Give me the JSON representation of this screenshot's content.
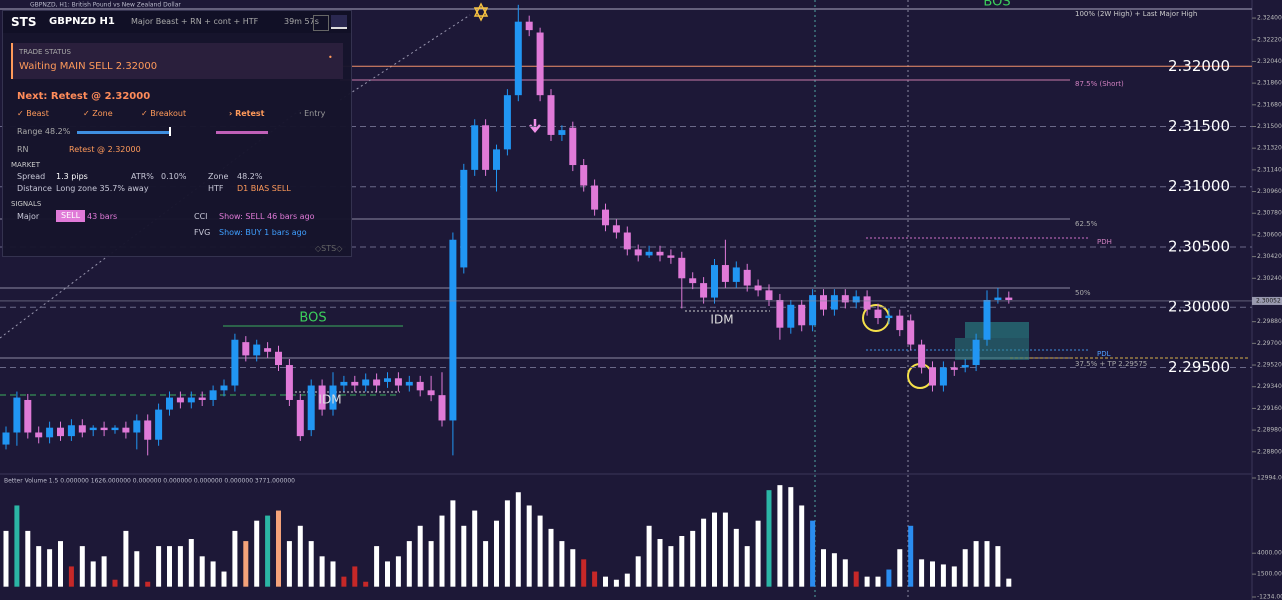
{
  "window_title": "GBPNZD, H1: British Pound vs New Zealand Dollar",
  "panel": {
    "logo": "STS",
    "symbol": "GBPNZD H1",
    "mode": "Major Beast + RN + cont + HTF",
    "timer": "39m 57s",
    "status_heading": "TRADE STATUS",
    "status": "Waiting MAIN SELL 2.32000",
    "next": "Next: Retest @ 2.32000",
    "steps": [
      "✓ Beast",
      "✓ Zone",
      "✓ Breakout",
      "› Retest",
      "· Entry"
    ],
    "range": "Range 48.2%",
    "rn_label": "RN",
    "rn_value": "Retest @ 2.32000",
    "market_heading": "MARKET",
    "spread_label": "Spread",
    "spread": "1.3 pips",
    "atr_label": "ATR%",
    "atr": "0.10%",
    "zone_label": "Zone",
    "zone": "48.2%",
    "distance_label": "Distance",
    "distance": "Long zone 35.7% away",
    "htf_label": "HTF",
    "htf": "D1 BIAS SELL",
    "signals_heading": "SIGNALS",
    "major_label": "Major",
    "major_badge": "SELL",
    "major_bars": "43 bars",
    "cci_label": "CCI",
    "cci": "Show: SELL 46 bars ago",
    "fvg_label": "FVG",
    "fvg": "Show: BUY 1 bars ago",
    "footer": "◇STS◇"
  },
  "chart_data": [
    {
      "type": "candlestick",
      "up_color": "#2196f3",
      "down_color": "#e07ad8",
      "open": [
        2.2886,
        2.2896,
        2.2923,
        2.2896,
        2.2892,
        2.29,
        2.2893,
        2.2902,
        2.2898,
        2.29,
        2.2898,
        2.29,
        2.2896,
        2.2906,
        2.289,
        2.2915,
        2.2925,
        2.2921,
        2.2925,
        2.2923,
        2.2931,
        2.2935,
        2.2971,
        2.296,
        2.2966,
        2.2963,
        2.2952,
        2.2923,
        2.2898,
        2.2935,
        2.2915,
        2.2935,
        2.2938,
        2.2935,
        2.294,
        2.2938,
        2.2941,
        2.2935,
        2.2938,
        2.2931,
        2.2927,
        2.2906,
        2.3033,
        2.3114,
        2.3151,
        2.3114,
        2.3131,
        2.3176,
        2.3237,
        2.3228,
        2.3176,
        2.3143,
        2.3149,
        2.3118,
        2.3101,
        2.3081,
        2.3068,
        2.3062,
        2.3048,
        2.3043,
        2.3046,
        2.3043,
        2.3041,
        2.3024,
        2.302,
        2.3008,
        2.3035,
        2.3021,
        2.3031,
        2.3018,
        2.3014,
        2.3006,
        2.2983,
        2.3002,
        2.2985,
        2.301,
        2.2998,
        2.301,
        2.3004,
        2.3009,
        2.2998,
        2.2991,
        2.2993,
        2.2989,
        2.2969,
        2.295,
        2.2935,
        2.295,
        2.295,
        2.2952,
        2.2973,
        2.3006,
        2.3008
      ],
      "high": [
        2.2901,
        2.293,
        2.2928,
        2.2901,
        2.2905,
        2.2905,
        2.2907,
        2.2907,
        2.2902,
        2.2905,
        2.2902,
        2.2905,
        2.2911,
        2.2911,
        2.292,
        2.293,
        2.293,
        2.293,
        2.293,
        2.2935,
        2.294,
        2.2978,
        2.2976,
        2.2973,
        2.2971,
        2.2968,
        2.2957,
        2.2928,
        2.294,
        2.294,
        2.2946,
        2.2943,
        2.2943,
        2.2945,
        2.2945,
        2.2946,
        2.2946,
        2.2943,
        2.2943,
        2.2943,
        2.2946,
        2.3062,
        2.3119,
        2.3156,
        2.3156,
        2.3135,
        2.3181,
        2.3251,
        2.3242,
        2.3232,
        2.3181,
        2.3151,
        2.3154,
        2.3123,
        2.3106,
        2.3086,
        2.3073,
        2.3067,
        2.3052,
        2.3051,
        2.3051,
        2.3048,
        2.3046,
        2.3029,
        2.3025,
        2.304,
        2.3056,
        2.3038,
        2.3036,
        2.3023,
        2.3019,
        2.3011,
        2.3006,
        2.3006,
        2.3015,
        2.3015,
        2.3015,
        2.3015,
        2.3014,
        2.3014,
        2.3003,
        2.2999,
        2.2998,
        2.2994,
        2.2973,
        2.2955,
        2.2955,
        2.2955,
        2.2957,
        2.2978,
        2.3014,
        2.3016,
        2.3013
      ],
      "low": [
        2.2882,
        2.2885,
        2.2891,
        2.2887,
        2.2887,
        2.2889,
        2.2889,
        2.2892,
        2.2893,
        2.2893,
        2.2895,
        2.2891,
        2.2882,
        2.2877,
        2.2885,
        2.291,
        2.2916,
        2.2916,
        2.2918,
        2.2918,
        2.2926,
        2.293,
        2.2955,
        2.2955,
        2.2958,
        2.2947,
        2.2918,
        2.2889,
        2.2893,
        2.291,
        2.291,
        2.293,
        2.293,
        2.293,
        2.293,
        2.2933,
        2.293,
        2.293,
        2.2926,
        2.2922,
        2.2901,
        2.2877,
        2.3028,
        2.3109,
        2.3109,
        2.3096,
        2.3126,
        2.3171,
        2.3225,
        2.3171,
        2.3138,
        2.3138,
        2.3113,
        2.3096,
        2.3076,
        2.3063,
        2.3057,
        2.3043,
        2.3038,
        2.3041,
        2.3038,
        2.3036,
        2.2999,
        2.3015,
        2.3003,
        2.3003,
        2.3016,
        2.3016,
        2.3013,
        2.3009,
        2.3001,
        2.2973,
        2.2978,
        2.298,
        2.298,
        2.2993,
        2.2993,
        2.2999,
        2.2999,
        2.2993,
        2.2986,
        2.2986,
        2.2976,
        2.2964,
        2.2945,
        2.293,
        2.293,
        2.2943,
        2.2946,
        2.2947,
        2.2968,
        2.3003,
        2.3003
      ],
      "close": [
        2.2896,
        2.2925,
        2.2896,
        2.2892,
        2.29,
        2.2893,
        2.2902,
        2.2896,
        2.29,
        2.2898,
        2.29,
        2.2896,
        2.2906,
        2.289,
        2.2915,
        2.2925,
        2.2921,
        2.2925,
        2.2923,
        2.2931,
        2.2935,
        2.2973,
        2.296,
        2.2969,
        2.2963,
        2.2952,
        2.2923,
        2.2893,
        2.2935,
        2.2915,
        2.2935,
        2.2938,
        2.2935,
        2.294,
        2.2935,
        2.2941,
        2.2935,
        2.2938,
        2.2931,
        2.2927,
        2.2906,
        2.3056,
        2.3114,
        2.3151,
        2.3114,
        2.3131,
        2.3176,
        2.3237,
        2.323,
        2.3176,
        2.3143,
        2.3147,
        2.3118,
        2.3101,
        2.3081,
        2.3068,
        2.3062,
        2.3048,
        2.3043,
        2.3046,
        2.3043,
        2.3041,
        2.3024,
        2.302,
        2.3008,
        2.3035,
        2.3021,
        2.3033,
        2.3018,
        2.3014,
        2.3006,
        2.2983,
        2.3002,
        2.2985,
        2.301,
        2.2998,
        2.301,
        2.3004,
        2.3009,
        2.2998,
        2.2991,
        2.2993,
        2.2981,
        2.2969,
        2.295,
        2.2935,
        2.295,
        2.2948,
        2.2952,
        2.2973,
        2.3006,
        2.3008,
        2.3006
      ],
      "ylim": [
        2.2875,
        2.3255
      ],
      "yticks": [
        {
          "value": 2.324,
          "label": "2.32400"
        },
        {
          "value": 2.3222,
          "label": "2.32220"
        },
        {
          "value": 2.3204,
          "label": "2.32040"
        },
        {
          "value": 2.3186,
          "label": "2.31860"
        },
        {
          "value": 2.3168,
          "label": "2.31680"
        },
        {
          "value": 2.315,
          "label": "2.31500"
        },
        {
          "value": 2.3132,
          "label": "2.31320"
        },
        {
          "value": 2.3114,
          "label": "2.31140"
        },
        {
          "value": 2.3096,
          "label": "2.30960"
        },
        {
          "value": 2.3078,
          "label": "2.30780"
        },
        {
          "value": 2.306,
          "label": "2.30600"
        },
        {
          "value": 2.3042,
          "label": "2.30420"
        },
        {
          "value": 2.3024,
          "label": "2.30240"
        },
        {
          "value": 2.2988,
          "label": "2.29880"
        },
        {
          "value": 2.297,
          "label": "2.29700"
        },
        {
          "value": 2.2952,
          "label": "2.29520"
        },
        {
          "value": 2.2934,
          "label": "2.29340"
        },
        {
          "value": 2.2916,
          "label": "2.29160"
        },
        {
          "value": 2.2898,
          "label": "2.28980"
        },
        {
          "value": 2.288,
          "label": "2.28800"
        }
      ],
      "current_price": {
        "value": 2.30052,
        "label": "2.30052"
      },
      "round_levels": [
        {
          "value": 2.32,
          "label": "2.32000"
        },
        {
          "value": 2.315,
          "label": "2.31500"
        },
        {
          "value": 2.31,
          "label": "2.31000"
        },
        {
          "value": 2.305,
          "label": "2.30500"
        },
        {
          "value": 2.3,
          "label": "2.30000"
        },
        {
          "value": 2.295,
          "label": "2.29500"
        }
      ],
      "annotations": [
        "BOS",
        "BOS",
        "IDM",
        "IDM",
        "100% (2W High) + Last Major High",
        "87.5% (Short)",
        "62.5%",
        "PDH",
        "50%",
        "PDL",
        "37.5% + TP 2.29575"
      ]
    },
    {
      "type": "bar",
      "title": "Better Volume 1.5 0.000000 1626.000000 0.000000 0.000000 0.000000 0.000000 3771.000000",
      "values": [
        6670,
        9710,
        6670,
        4850,
        4480,
        5450,
        2420,
        4850,
        3020,
        3630,
        830,
        6670,
        4240,
        590,
        4850,
        4850,
        4850,
        5700,
        3630,
        3020,
        1810,
        6670,
        5450,
        7890,
        8500,
        9100,
        5450,
        7280,
        5450,
        3630,
        3020,
        1200,
        2420,
        590,
        4850,
        3020,
        3630,
        5450,
        7280,
        5450,
        8500,
        10320,
        7280,
        9100,
        5450,
        7890,
        10320,
        11290,
        9710,
        8500,
        6910,
        5450,
        4480,
        3270,
        1810,
        1200,
        830,
        1560,
        3630,
        7280,
        5700,
        4850,
        6060,
        6670,
        8130,
        8860,
        8860,
        6910,
        4850,
        7890,
        11540,
        12140,
        11900,
        9710,
        7890,
        4480,
        4000,
        3270,
        1810,
        1200,
        1200,
        2050,
        4480,
        7280,
        3270,
        3020,
        2660,
        2420,
        4480,
        5450,
        5450,
        4850,
        960
      ],
      "colors": [
        "#ffffff",
        "#2bb5a5",
        "#ffffff",
        "#ffffff",
        "#ffffff",
        "#ffffff",
        "#c62828",
        "#ffffff",
        "#ffffff",
        "#ffffff",
        "#c62828",
        "#ffffff",
        "#ffffff",
        "#c62828",
        "#ffffff",
        "#ffffff",
        "#ffffff",
        "#ffffff",
        "#ffffff",
        "#ffffff",
        "#ffffff",
        "#ffffff",
        "#f4a27a",
        "#ffffff",
        "#2bb5a5",
        "#f4a27a",
        "#ffffff",
        "#ffffff",
        "#ffffff",
        "#ffffff",
        "#ffffff",
        "#c62828",
        "#c62828",
        "#c62828",
        "#ffffff",
        "#ffffff",
        "#ffffff",
        "#ffffff",
        "#ffffff",
        "#ffffff",
        "#ffffff",
        "#ffffff",
        "#ffffff",
        "#ffffff",
        "#ffffff",
        "#ffffff",
        "#ffffff",
        "#ffffff",
        "#ffffff",
        "#ffffff",
        "#ffffff",
        "#ffffff",
        "#ffffff",
        "#c62828",
        "#c62828",
        "#ffffff",
        "#ffffff",
        "#ffffff",
        "#ffffff",
        "#ffffff",
        "#ffffff",
        "#ffffff",
        "#ffffff",
        "#ffffff",
        "#ffffff",
        "#ffffff",
        "#ffffff",
        "#ffffff",
        "#ffffff",
        "#ffffff",
        "#2bb5a5",
        "#ffffff",
        "#ffffff",
        "#ffffff",
        "#2a8cf0",
        "#ffffff",
        "#ffffff",
        "#ffffff",
        "#c62828",
        "#ffffff",
        "#ffffff",
        "#2a8cf0",
        "#ffffff",
        "#2a8cf0",
        "#ffffff",
        "#ffffff",
        "#ffffff",
        "#ffffff",
        "#ffffff",
        "#ffffff",
        "#ffffff",
        "#ffffff",
        "#ffffff"
      ],
      "ylim": [
        -1234,
        12994
      ],
      "yticks": [
        {
          "value": 12994,
          "label": "12994.000"
        },
        {
          "value": 4000,
          "label": "4000.000"
        },
        {
          "value": 1500,
          "label": "1500.000"
        },
        {
          "value": -1234,
          "label": "-1234.000"
        }
      ]
    }
  ]
}
